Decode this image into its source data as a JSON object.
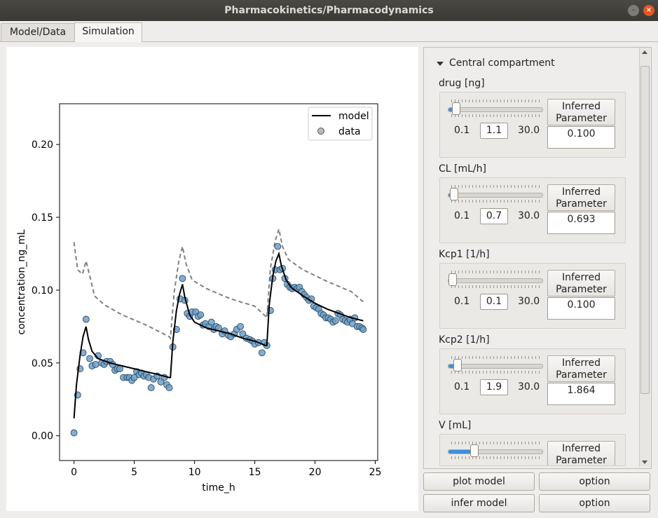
{
  "window": {
    "title": "Pharmacokinetics/Pharmacodynamics"
  },
  "tabs": [
    {
      "label": "Model/Data"
    },
    {
      "label": "Simulation"
    }
  ],
  "panel": {
    "section_title": "Central compartment",
    "params": [
      {
        "label": "drug [ng]",
        "min": "0.1",
        "value": "1.1",
        "max": "30.0",
        "button": [
          "Inferred",
          "Parameter"
        ],
        "inferred": "0.100",
        "slider_fraction": 0.04
      },
      {
        "label": "CL [mL/h]",
        "min": "0.1",
        "value": "0.7",
        "max": "30.0",
        "button": [
          "Inferred",
          "Parameter"
        ],
        "inferred": "0.693",
        "slider_fraction": 0.02
      },
      {
        "label": "Kcp1 [1/h]",
        "min": "0.1",
        "value": "0.1",
        "max": "30.0",
        "button": [
          "Inferred",
          "Parameter"
        ],
        "inferred": "0.100",
        "slider_fraction": 0.0
      },
      {
        "label": "Kcp2 [1/h]",
        "min": "0.1",
        "value": "1.9",
        "max": "30.0",
        "button": [
          "Inferred",
          "Parameter"
        ],
        "inferred": "1.864",
        "slider_fraction": 0.06
      },
      {
        "label": "V [mL]",
        "button": [
          "Inferred",
          "Parameter"
        ],
        "slider_fraction": 0.25
      }
    ]
  },
  "buttons": {
    "plot_model": "plot model",
    "option1": "option",
    "infer_model": "infer model",
    "option2": "option"
  },
  "colors": {
    "slider_fill": "#3d8ee0",
    "data_points": "#6fa0c8",
    "model_line": "#000000",
    "dashed_line": "#808080"
  },
  "chart_data": {
    "type": "line",
    "xlabel": "time_h",
    "ylabel": "concentration_ng_mL",
    "xlim": [
      -1.2,
      25.2
    ],
    "ylim": [
      -0.017,
      0.228
    ],
    "xticks": [
      "0",
      "5",
      "10",
      "15",
      "20",
      "25"
    ],
    "yticks": [
      "0.00",
      "0.05",
      "0.10",
      "0.15",
      "0.20"
    ],
    "legend": {
      "position": "top-right",
      "entries": [
        "model",
        "data"
      ]
    },
    "model": [
      [
        0,
        0.012
      ],
      [
        0.2,
        0.035
      ],
      [
        0.5,
        0.055
      ],
      [
        0.75,
        0.068
      ],
      [
        1.0,
        0.075
      ],
      [
        1.2,
        0.066
      ],
      [
        1.5,
        0.058
      ],
      [
        2,
        0.053
      ],
      [
        3,
        0.05
      ],
      [
        4,
        0.048
      ],
      [
        5,
        0.046
      ],
      [
        6,
        0.044
      ],
      [
        7,
        0.042
      ],
      [
        7.9,
        0.04
      ],
      [
        8.0,
        0.04
      ],
      [
        8.2,
        0.065
      ],
      [
        8.5,
        0.086
      ],
      [
        8.75,
        0.097
      ],
      [
        9.0,
        0.104
      ],
      [
        9.2,
        0.095
      ],
      [
        9.6,
        0.083
      ],
      [
        10,
        0.078
      ],
      [
        11,
        0.074
      ],
      [
        12,
        0.072
      ],
      [
        13,
        0.07
      ],
      [
        14,
        0.067
      ],
      [
        15,
        0.065
      ],
      [
        15.9,
        0.062
      ],
      [
        16.0,
        0.062
      ],
      [
        16.2,
        0.09
      ],
      [
        16.5,
        0.11
      ],
      [
        16.75,
        0.12
      ],
      [
        17.0,
        0.125
      ],
      [
        17.2,
        0.117
      ],
      [
        17.6,
        0.107
      ],
      [
        18,
        0.102
      ],
      [
        19,
        0.096
      ],
      [
        20,
        0.091
      ],
      [
        21,
        0.087
      ],
      [
        22,
        0.084
      ],
      [
        23,
        0.081
      ],
      [
        24,
        0.079
      ]
    ],
    "dashed": [
      [
        0,
        0.133
      ],
      [
        0.3,
        0.114
      ],
      [
        0.7,
        0.111
      ],
      [
        1.0,
        0.12
      ],
      [
        1.3,
        0.11
      ],
      [
        1.7,
        0.096
      ],
      [
        2.5,
        0.09
      ],
      [
        4,
        0.083
      ],
      [
        6,
        0.076
      ],
      [
        7.9,
        0.068
      ],
      [
        8.0,
        0.067
      ],
      [
        8.3,
        0.098
      ],
      [
        8.7,
        0.12
      ],
      [
        9.0,
        0.13
      ],
      [
        9.3,
        0.118
      ],
      [
        9.8,
        0.107
      ],
      [
        11,
        0.101
      ],
      [
        13,
        0.094
      ],
      [
        15,
        0.089
      ],
      [
        15.9,
        0.082
      ],
      [
        16.0,
        0.081
      ],
      [
        16.3,
        0.115
      ],
      [
        16.7,
        0.134
      ],
      [
        17.0,
        0.142
      ],
      [
        17.3,
        0.13
      ],
      [
        17.8,
        0.121
      ],
      [
        19,
        0.114
      ],
      [
        21,
        0.106
      ],
      [
        23,
        0.099
      ],
      [
        24,
        0.092
      ]
    ],
    "data": [
      [
        0,
        0.002
      ],
      [
        0.3,
        0.028
      ],
      [
        0.5,
        0.046
      ],
      [
        0.75,
        0.057
      ],
      [
        1.0,
        0.08
      ],
      [
        1.3,
        0.053
      ],
      [
        1.5,
        0.048
      ],
      [
        1.8,
        0.049
      ],
      [
        2.0,
        0.055
      ],
      [
        2.3,
        0.05
      ],
      [
        2.5,
        0.049
      ],
      [
        2.7,
        0.051
      ],
      [
        3.0,
        0.051
      ],
      [
        3.2,
        0.049
      ],
      [
        3.4,
        0.045
      ],
      [
        3.6,
        0.046
      ],
      [
        3.8,
        0.046
      ],
      [
        4.1,
        0.04
      ],
      [
        4.4,
        0.04
      ],
      [
        4.6,
        0.04
      ],
      [
        4.8,
        0.038
      ],
      [
        5.0,
        0.04
      ],
      [
        5.2,
        0.044
      ],
      [
        5.4,
        0.042
      ],
      [
        5.6,
        0.043
      ],
      [
        5.8,
        0.041
      ],
      [
        6.0,
        0.042
      ],
      [
        6.2,
        0.04
      ],
      [
        6.4,
        0.033
      ],
      [
        6.6,
        0.039
      ],
      [
        6.9,
        0.041
      ],
      [
        7.2,
        0.037
      ],
      [
        7.5,
        0.04
      ],
      [
        7.7,
        0.035
      ],
      [
        7.9,
        0.033
      ],
      [
        8.2,
        0.061
      ],
      [
        8.5,
        0.073
      ],
      [
        8.8,
        0.094
      ],
      [
        9.0,
        0.108
      ],
      [
        9.2,
        0.093
      ],
      [
        9.4,
        0.084
      ],
      [
        9.6,
        0.082
      ],
      [
        9.8,
        0.085
      ],
      [
        10.1,
        0.085
      ],
      [
        10.3,
        0.082
      ],
      [
        10.5,
        0.083
      ],
      [
        10.7,
        0.076
      ],
      [
        10.9,
        0.077
      ],
      [
        11.2,
        0.075
      ],
      [
        11.4,
        0.078
      ],
      [
        11.6,
        0.073
      ],
      [
        11.8,
        0.075
      ],
      [
        12.0,
        0.074
      ],
      [
        12.3,
        0.07
      ],
      [
        12.5,
        0.072
      ],
      [
        12.8,
        0.069
      ],
      [
        13.0,
        0.068
      ],
      [
        13.3,
        0.07
      ],
      [
        13.5,
        0.073
      ],
      [
        13.8,
        0.075
      ],
      [
        14.0,
        0.07
      ],
      [
        14.3,
        0.067
      ],
      [
        14.6,
        0.066
      ],
      [
        14.8,
        0.065
      ],
      [
        15.0,
        0.063
      ],
      [
        15.3,
        0.064
      ],
      [
        15.6,
        0.057
      ],
      [
        15.8,
        0.064
      ],
      [
        16.0,
        0.062
      ],
      [
        16.3,
        0.086
      ],
      [
        16.5,
        0.108
      ],
      [
        16.7,
        0.114
      ],
      [
        16.9,
        0.13
      ],
      [
        17.1,
        0.114
      ],
      [
        17.3,
        0.115
      ],
      [
        17.5,
        0.108
      ],
      [
        17.7,
        0.104
      ],
      [
        17.9,
        0.102
      ],
      [
        18.1,
        0.101
      ],
      [
        18.3,
        0.102
      ],
      [
        18.5,
        0.101
      ],
      [
        18.7,
        0.102
      ],
      [
        18.9,
        0.099
      ],
      [
        19.1,
        0.097
      ],
      [
        19.3,
        0.095
      ],
      [
        19.5,
        0.093
      ],
      [
        19.7,
        0.094
      ],
      [
        19.9,
        0.089
      ],
      [
        20.1,
        0.088
      ],
      [
        20.3,
        0.087
      ],
      [
        20.5,
        0.084
      ],
      [
        20.7,
        0.083
      ],
      [
        20.9,
        0.081
      ],
      [
        21.1,
        0.081
      ],
      [
        21.3,
        0.08
      ],
      [
        21.5,
        0.078
      ],
      [
        21.7,
        0.079
      ],
      [
        21.9,
        0.084
      ],
      [
        22.1,
        0.083
      ],
      [
        22.3,
        0.08
      ],
      [
        22.5,
        0.079
      ],
      [
        22.7,
        0.078
      ],
      [
        22.9,
        0.08
      ],
      [
        23.1,
        0.077
      ],
      [
        23.3,
        0.081
      ],
      [
        23.5,
        0.075
      ],
      [
        23.7,
        0.075
      ],
      [
        23.9,
        0.074
      ],
      [
        24.0,
        0.073
      ]
    ]
  }
}
